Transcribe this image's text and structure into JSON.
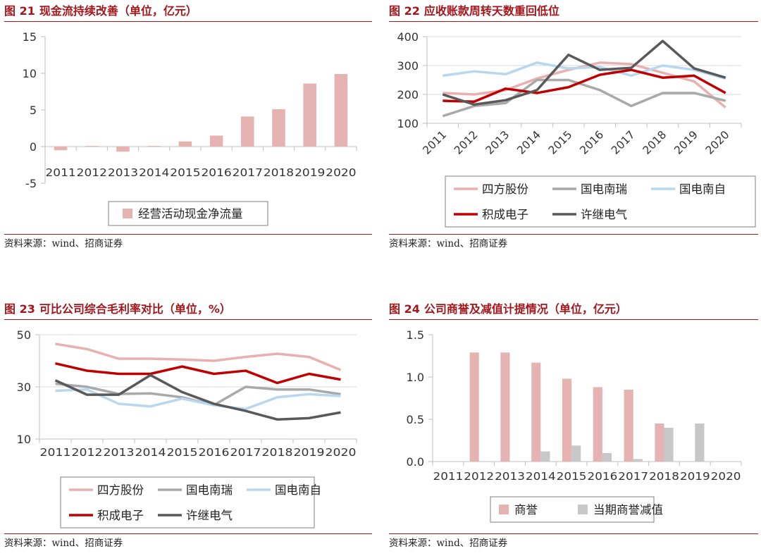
{
  "charts": [
    {
      "fig_label": "图 21",
      "title": "现金流持续改善（单位，亿元）",
      "source": "资料来源：wind、招商证券",
      "chart_data": {
        "type": "bar",
        "categories": [
          "2011",
          "2012",
          "2013",
          "2014",
          "2015",
          "2016",
          "2017",
          "2018",
          "2019",
          "2020"
        ],
        "series": [
          {
            "name": "经营活动现金净流量",
            "values": [
              -0.5,
              0.1,
              -0.7,
              0.1,
              0.7,
              1.5,
              4.1,
              5.1,
              8.6,
              9.9
            ],
            "color": "#e6b3b3"
          }
        ],
        "ylim": [
          -5,
          15
        ],
        "yticks": [
          -5,
          0,
          5,
          10,
          15
        ],
        "legend": "bottom",
        "grid": false
      }
    },
    {
      "fig_label": "图 22",
      "title": "应收账款周转天数重回低位",
      "source": "资料来源：wind、招商证券",
      "chart_data": {
        "type": "line",
        "categories": [
          "2011",
          "2012",
          "2013",
          "2014",
          "2015",
          "2016",
          "2017",
          "2018",
          "2019",
          "2020"
        ],
        "series": [
          {
            "name": "四方股份",
            "values": [
              205,
              200,
              215,
              255,
              285,
              310,
              305,
              275,
              245,
              155
            ],
            "color": "#e8b0b0"
          },
          {
            "name": "国电南瑞",
            "values": [
              125,
              160,
              170,
              250,
              250,
              215,
              160,
              205,
              205,
              178
            ],
            "color": "#a9a9a9"
          },
          {
            "name": "国电南自",
            "values": [
              265,
              280,
              270,
              310,
              290,
              295,
              265,
              300,
              285,
              255
            ],
            "color": "#b9d7ef"
          },
          {
            "name": "积成电子",
            "values": [
              178,
              175,
              220,
              205,
              225,
              268,
              285,
              258,
              265,
              205
            ],
            "color": "#c00000"
          },
          {
            "name": "许继电气",
            "values": [
              200,
              165,
              180,
              215,
              337,
              285,
              292,
              385,
              290,
              258
            ],
            "color": "#595959"
          }
        ],
        "ylim": [
          100,
          400
        ],
        "yticks": [
          100,
          200,
          300,
          400
        ],
        "legend": "bottom",
        "grid": true
      }
    },
    {
      "fig_label": "图 23",
      "title": "可比公司综合毛利率对比（单位，%）",
      "source": "资料来源：wind、招商证券",
      "chart_data": {
        "type": "line",
        "categories": [
          "2011",
          "2012",
          "2013",
          "2014",
          "2015",
          "2016",
          "2017",
          "2018",
          "2019",
          "2020"
        ],
        "series": [
          {
            "name": "四方股份",
            "values": [
              46.5,
              44.5,
              40.8,
              40.8,
              40.5,
              40.0,
              41.5,
              42.7,
              41.5,
              36.5
            ],
            "color": "#e8b0b0"
          },
          {
            "name": "国电南瑞",
            "values": [
              31.2,
              30.0,
              27.3,
              27.5,
              26.0,
              23.0,
              30.0,
              29.0,
              29.0,
              27.2
            ],
            "color": "#a9a9a9"
          },
          {
            "name": "国电南自",
            "values": [
              28.5,
              29.0,
              23.5,
              22.5,
              25.5,
              23.0,
              21.5,
              26.0,
              27.2,
              26.5
            ],
            "color": "#b9d7ef"
          },
          {
            "name": "积成电子",
            "values": [
              39.0,
              36.2,
              35.0,
              35.0,
              37.8,
              35.0,
              36.2,
              31.5,
              35.0,
              32.8
            ],
            "color": "#c00000"
          },
          {
            "name": "许继电气",
            "values": [
              32.5,
              27.0,
              27.0,
              34.5,
              28.0,
              23.5,
              20.8,
              17.5,
              18.0,
              20.2
            ],
            "color": "#595959"
          }
        ],
        "ylim": [
          10,
          50
        ],
        "yticks": [
          10,
          30,
          50
        ],
        "legend": "bottom",
        "grid": true
      }
    },
    {
      "fig_label": "图 24",
      "title": "公司商誉及减值计提情况（单位，亿元）",
      "source": "资料来源：wind、招商证券",
      "chart_data": {
        "type": "bar",
        "categories": [
          "2011",
          "2012",
          "2013",
          "2014",
          "2015",
          "2016",
          "2017",
          "2018",
          "2019",
          "2020"
        ],
        "series": [
          {
            "name": "商誉",
            "values": [
              0,
              1.29,
              1.29,
              1.17,
              0.98,
              0.88,
              0.85,
              0.45,
              0,
              0
            ],
            "color": "#e6b3b3"
          },
          {
            "name": "当期商誉减值",
            "values": [
              0,
              0,
              0,
              0.12,
              0.19,
              0.1,
              0.03,
              0.4,
              0.45,
              0
            ],
            "color": "#c8c8c8"
          }
        ],
        "ylim": [
          0,
          1.5
        ],
        "yticks": [
          "0.0",
          "0.5",
          "1.0",
          "1.5"
        ],
        "legend": "bottom",
        "grid": false
      }
    }
  ]
}
